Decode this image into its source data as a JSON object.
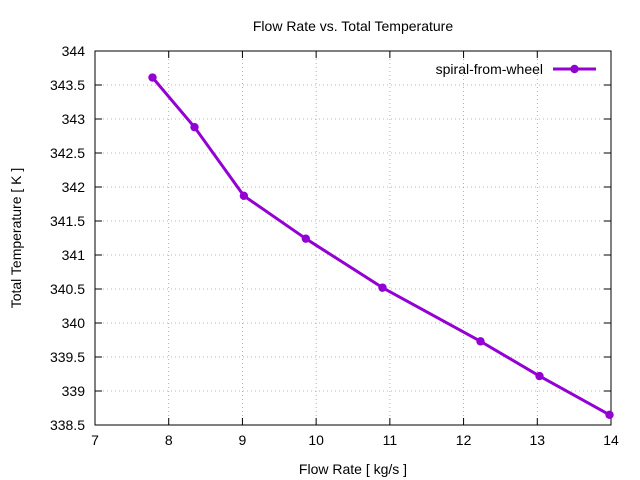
{
  "chart_data": {
    "type": "line",
    "title": "Flow Rate vs. Total Temperature",
    "xlabel": "Flow Rate [ kg/s ]",
    "ylabel": "Total Temperature [ K ]",
    "xlim": [
      7,
      14
    ],
    "ylim": [
      338.5,
      344
    ],
    "x_ticks": [
      7,
      8,
      9,
      10,
      11,
      12,
      13,
      14
    ],
    "x_tick_labels": [
      "7",
      "8",
      "9",
      "10",
      "11",
      "12",
      "13",
      "14"
    ],
    "y_ticks": [
      338.5,
      339,
      339.5,
      340,
      340.5,
      341,
      341.5,
      342,
      342.5,
      343,
      343.5,
      344
    ],
    "y_tick_labels": [
      "338.5",
      "339",
      "339.5",
      "340",
      "340.5",
      "341",
      "341.5",
      "342",
      "342.5",
      "343",
      "343.5",
      "344"
    ],
    "grid": true,
    "legend_position": "top-right",
    "series": [
      {
        "name": "spiral-from-wheel",
        "color": "#9400d3",
        "x": [
          7.78,
          8.35,
          9.02,
          9.86,
          10.9,
          12.23,
          13.03,
          13.98
        ],
        "values": [
          343.61,
          342.88,
          341.87,
          341.24,
          340.52,
          339.73,
          339.22,
          338.65
        ]
      }
    ]
  }
}
